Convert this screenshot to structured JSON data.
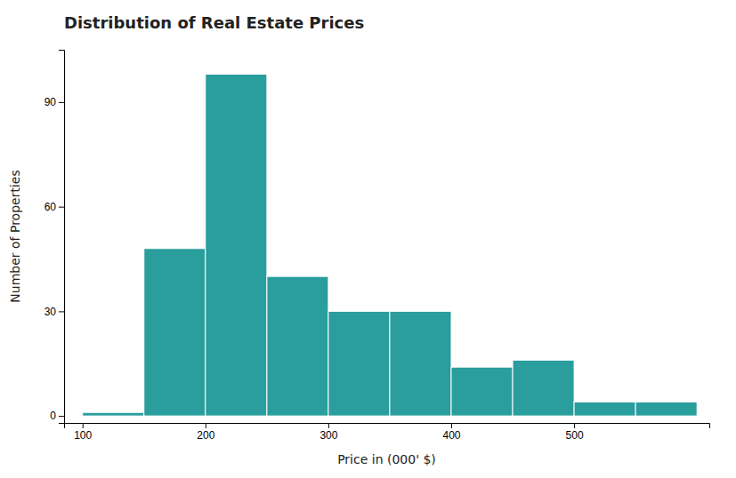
{
  "chart_data": {
    "type": "histogram",
    "title": "Distribution of Real Estate Prices",
    "xlabel": "Price in (000' $)",
    "ylabel": "Number of Properties",
    "bins": [
      100,
      150,
      200,
      250,
      300,
      350,
      400,
      450,
      500,
      550,
      600
    ],
    "values": [
      1,
      48,
      98,
      40,
      30,
      30,
      14,
      16,
      4,
      4
    ],
    "color": "#2a9d9d",
    "xlim": [
      85,
      610
    ],
    "ylim": [
      -2,
      105
    ],
    "xticks": [
      100,
      200,
      300,
      400,
      500
    ],
    "yticks": [
      0,
      30,
      60,
      90
    ],
    "grid": false
  }
}
